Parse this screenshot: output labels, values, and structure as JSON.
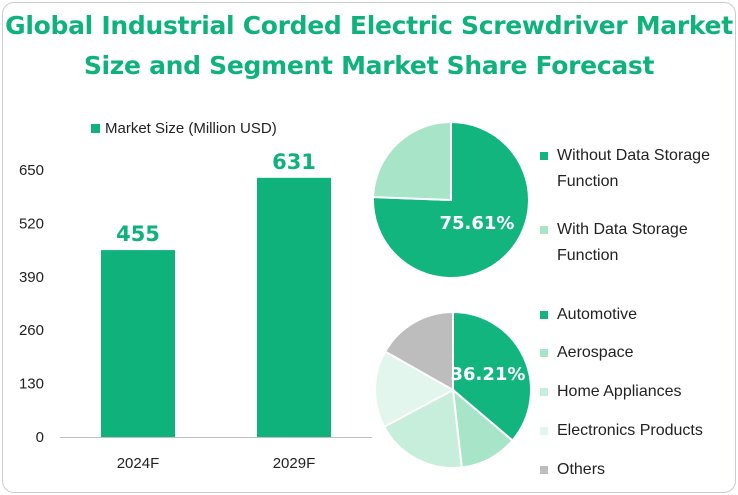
{
  "title_line1": "Global Industrial Corded Electric Screwdriver Market",
  "title_line2": "Size and Segment Market Share Forecast",
  "colors": {
    "accent": "#10b27c",
    "axis_text": "#222222",
    "pie1": [
      "#13b57f",
      "#a8e4c8"
    ],
    "pie2": [
      "#13b57f",
      "#a8e4c8",
      "#c6eedb",
      "#e3f6ee",
      "#bdbdbd"
    ]
  },
  "chart_data": [
    {
      "type": "bar",
      "legend": "Market Size (Million USD)",
      "categories": [
        "2024F",
        "2029F"
      ],
      "values": [
        455,
        631
      ],
      "y_ticks": [
        "0",
        "130",
        "260",
        "390",
        "520",
        "650"
      ],
      "ylim": [
        0,
        650
      ],
      "legend_position": "top"
    },
    {
      "type": "pie",
      "labels": [
        "Without Data Storage Function",
        "With Data Storage Function"
      ],
      "legend_lines": [
        [
          "Without Data Storage",
          "Function"
        ],
        [
          "With Data Storage",
          "Function"
        ]
      ],
      "values": [
        75.61,
        24.39
      ],
      "shown_label": "75.61%",
      "legend_position": "right"
    },
    {
      "type": "pie",
      "labels": [
        "Automotive",
        "Aerospace",
        "Home Appliances",
        "Electronics Products",
        "Others"
      ],
      "values": [
        36.21,
        12.0,
        19.0,
        16.0,
        16.79
      ],
      "shown_label": "36.21%",
      "legend_position": "right"
    }
  ]
}
